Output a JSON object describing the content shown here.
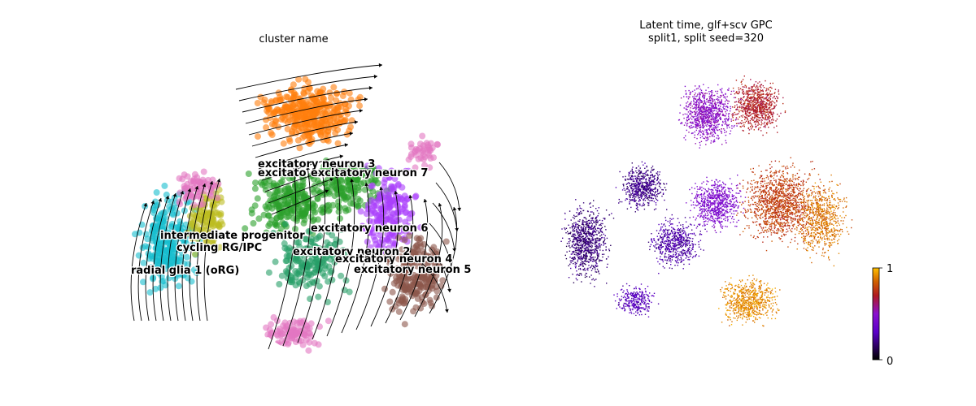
{
  "left_panel": {
    "title": "cluster name",
    "clusters": [
      {
        "label": "excitatory neuron 3",
        "color": "#ff7f0e"
      },
      {
        "label": "excitatory neuron 7",
        "color": "#2ca02c"
      },
      {
        "label": "excitatory neuron 6",
        "color": "#2ca02c"
      },
      {
        "label": "intermediate progenitor",
        "color": "#e377c2"
      },
      {
        "label": "cycling RG/IPC",
        "color": "#bcbd22"
      },
      {
        "label": "excitatory neuron 2",
        "color": "#279e68"
      },
      {
        "label": "excitatory neuron 4",
        "color": "#aa40fc"
      },
      {
        "label": "excitatory neuron 5",
        "color": "#8c564b"
      },
      {
        "label": "radial glia 1 (oRG)",
        "color": "#17becf"
      }
    ],
    "overlap_label": "excitato"
  },
  "right_panel": {
    "title_line1": "Latent time, glf+scv GPC",
    "title_line2": "split1, split seed=320",
    "colorbar": {
      "min_label": "0",
      "max_label": "1",
      "colors": [
        "#000000",
        "#7a00ff",
        "#c02a00",
        "#ffc000"
      ]
    }
  },
  "chart_data": [
    {
      "type": "scatter",
      "title": "cluster name",
      "legend": "on data",
      "overlay": "velocity streamlines",
      "series": [
        {
          "name": "excitatory neuron 3"
        },
        {
          "name": "excitatory neuron 7"
        },
        {
          "name": "excitatory neuron 6"
        },
        {
          "name": "intermediate progenitor"
        },
        {
          "name": "cycling RG/IPC"
        },
        {
          "name": "excitatory neuron 2"
        },
        {
          "name": "excitatory neuron 4"
        },
        {
          "name": "excitatory neuron 5"
        },
        {
          "name": "radial glia 1 (oRG)"
        }
      ]
    },
    {
      "type": "scatter",
      "title": "Latent time, glf+scv GPC split1, split seed=320",
      "colorbar_range": [
        0,
        1
      ],
      "colormap": "gnuplot"
    }
  ]
}
